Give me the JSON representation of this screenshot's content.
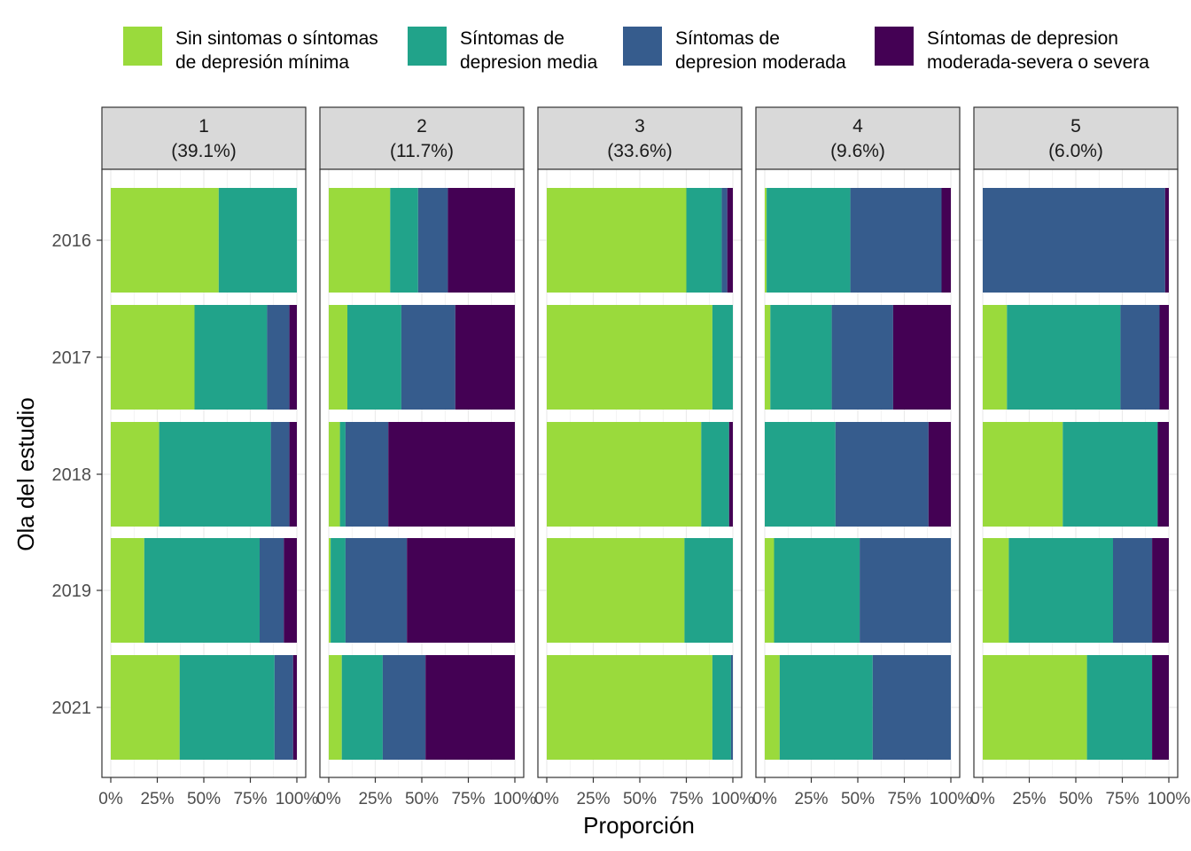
{
  "chart_data": {
    "type": "bar",
    "orientation": "horizontal",
    "stacked": "fill",
    "xlabel": "Proporción",
    "ylabel": "Ola del estudio",
    "xlim": [
      0,
      1
    ],
    "x_ticks": [
      "0%",
      "25%",
      "50%",
      "75%",
      "100%"
    ],
    "categories": [
      "2016",
      "2017",
      "2018",
      "2019",
      "2021"
    ],
    "legend_position": "top",
    "grid": true,
    "series": [
      {
        "name": "Sin sintomas o síntomas de depresión mínima",
        "label_lines": [
          "Sin sintomas o síntomas",
          "de depresión mínima"
        ],
        "color": "#9ADA3C"
      },
      {
        "name": "Síntomas de depresion media",
        "label_lines": [
          "Síntomas de",
          "depresion media"
        ],
        "color": "#21A38A"
      },
      {
        "name": "Síntomas de depresion moderada",
        "label_lines": [
          "Síntomas de",
          "depresion moderada"
        ],
        "color": "#365C8D"
      },
      {
        "name": "Síntomas de depresion moderada-severa o severa",
        "label_lines": [
          "Síntomas de depresion",
          "moderada-severa o severa"
        ],
        "color": "#440154"
      }
    ],
    "facets": [
      {
        "label": "1",
        "sublabel": "(39.1%)",
        "values": [
          [
            0.58,
            0.42,
            0.0,
            0.0
          ],
          [
            0.45,
            0.39,
            0.12,
            0.04
          ],
          [
            0.26,
            0.6,
            0.1,
            0.04
          ],
          [
            0.18,
            0.62,
            0.13,
            0.07
          ],
          [
            0.37,
            0.51,
            0.1,
            0.02
          ]
        ]
      },
      {
        "label": "2",
        "sublabel": "(11.7%)",
        "values": [
          [
            0.33,
            0.15,
            0.16,
            0.36
          ],
          [
            0.1,
            0.29,
            0.29,
            0.32
          ],
          [
            0.06,
            0.03,
            0.23,
            0.68
          ],
          [
            0.01,
            0.08,
            0.33,
            0.58
          ],
          [
            0.07,
            0.22,
            0.23,
            0.48
          ]
        ]
      },
      {
        "label": "3",
        "sublabel": "(33.6%)",
        "values": [
          [
            0.75,
            0.19,
            0.03,
            0.03
          ],
          [
            0.89,
            0.11,
            0.0,
            0.0
          ],
          [
            0.83,
            0.15,
            0.0,
            0.02
          ],
          [
            0.74,
            0.26,
            0.0,
            0.0
          ],
          [
            0.89,
            0.1,
            0.01,
            0.0
          ]
        ]
      },
      {
        "label": "4",
        "sublabel": "(9.6%)",
        "values": [
          [
            0.01,
            0.45,
            0.49,
            0.05
          ],
          [
            0.03,
            0.33,
            0.33,
            0.31
          ],
          [
            0.0,
            0.38,
            0.5,
            0.12
          ],
          [
            0.05,
            0.46,
            0.49,
            0.0
          ],
          [
            0.08,
            0.5,
            0.42,
            0.0
          ]
        ]
      },
      {
        "label": "5",
        "sublabel": "(6.0%)",
        "values": [
          [
            0.0,
            0.0,
            0.98,
            0.02
          ],
          [
            0.13,
            0.61,
            0.21,
            0.05
          ],
          [
            0.43,
            0.51,
            0.0,
            0.06
          ],
          [
            0.14,
            0.56,
            0.21,
            0.09
          ],
          [
            0.56,
            0.35,
            0.0,
            0.09
          ]
        ]
      }
    ]
  }
}
